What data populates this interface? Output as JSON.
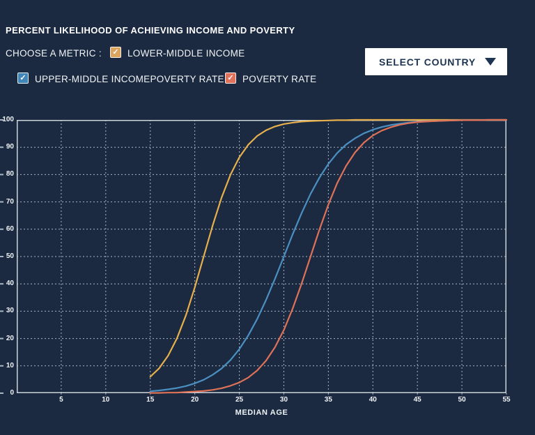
{
  "colors": {
    "background": "#1b2a41",
    "text": "#ffffff",
    "dropdown_bg": "#ffffff",
    "dropdown_text": "#1d3452",
    "grid": "#a9b6c3",
    "axis_border": "#ccd4db"
  },
  "header": {
    "title": "PERCENT LIKELIHOOD OF ACHIEVING INCOME AND POVERTY"
  },
  "metric_chooser": {
    "label": "CHOOSE A METRIC :",
    "check_glyph": "✓",
    "options": [
      {
        "label": "LOWER-MIDDLE INCOME",
        "color": "#dca55f",
        "checked": true
      },
      {
        "label": "UPPER-MIDDLE INCOMEPOVERTY RATE",
        "color": "#4286b8",
        "checked": true
      },
      {
        "label": "POVERTY RATE",
        "color": "#e0715b",
        "checked": true
      }
    ]
  },
  "country_select": {
    "label": "SELECT COUNTRY"
  },
  "chart_data": {
    "type": "line",
    "title": "",
    "xlabel": "MEDIAN AGE",
    "ylabel": "",
    "xlim": [
      0,
      55
    ],
    "ylim": [
      0,
      100
    ],
    "xticks": [
      5,
      10,
      15,
      20,
      25,
      30,
      35,
      40,
      45,
      50,
      55
    ],
    "yticks": [
      0,
      10,
      20,
      30,
      40,
      50,
      60,
      70,
      80,
      90,
      100
    ],
    "grid": true,
    "legend": "none",
    "x": [
      15,
      16,
      17,
      18,
      19,
      20,
      21,
      22,
      23,
      24,
      25,
      26,
      27,
      28,
      29,
      30,
      31,
      32,
      33,
      34,
      35,
      36,
      37,
      38,
      39,
      40,
      41,
      42,
      43,
      44,
      45,
      46,
      47,
      48,
      49,
      50,
      51,
      52,
      53,
      54,
      55
    ],
    "series": [
      {
        "name": "LOWER-MIDDLE INCOME",
        "color": "#e7b04c",
        "values": [
          6,
          9.1,
          13.7,
          20.1,
          28.5,
          38.7,
          50,
          61.3,
          71.5,
          79.9,
          86.3,
          90.9,
          94.1,
          96.2,
          97.6,
          98.5,
          99,
          99.4,
          99.6,
          99.7,
          99.8,
          99.9,
          99.9,
          100,
          100,
          100,
          100,
          100,
          100,
          100,
          100,
          100,
          100,
          100,
          100,
          100,
          100,
          100,
          100,
          100,
          100
        ]
      },
      {
        "name": "UPPER-MIDDLE INCOME",
        "color": "#4a90c2",
        "values": [
          0.7,
          1,
          1.4,
          1.9,
          2.6,
          3.6,
          4.9,
          6.7,
          9,
          12.1,
          16.1,
          21.1,
          27.1,
          34.1,
          41.8,
          50,
          58.2,
          65.9,
          72.9,
          78.9,
          83.9,
          87.9,
          91,
          93.3,
          95.1,
          96.4,
          97.4,
          98.1,
          98.6,
          99,
          99.3,
          99.5,
          99.6,
          99.7,
          99.8,
          99.9,
          99.9,
          99.9,
          100,
          100,
          100
        ]
      },
      {
        "name": "POVERTY RATE",
        "color": "#e07258",
        "values": [
          0.1,
          0.1,
          0.2,
          0.2,
          0.4,
          0.6,
          0.8,
          1.2,
          1.8,
          2.7,
          3.9,
          5.7,
          8.3,
          11.9,
          16.8,
          23.1,
          31,
          40.1,
          50,
          59.9,
          69,
          76.9,
          83.2,
          88.1,
          91.7,
          94.3,
          96.1,
          97.3,
          98.2,
          98.8,
          99.2,
          99.4,
          99.6,
          99.7,
          99.8,
          99.9,
          99.9,
          99.9,
          100,
          100,
          100
        ]
      }
    ]
  }
}
